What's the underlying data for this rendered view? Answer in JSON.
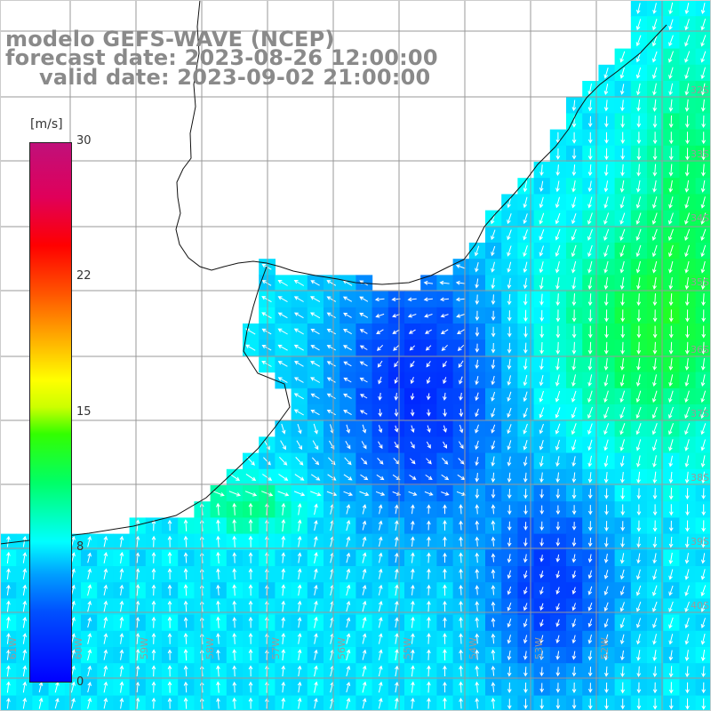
{
  "title": {
    "model": "modelo GEFS-WAVE (NCEP)",
    "forecast": "forecast date: 2023-08-26 12:00:00",
    "valid": "valid date: 2023-09-02 21:00:00"
  },
  "colorbar": {
    "units": "[m/s]",
    "ticks": [
      {
        "label": "30",
        "value": 30
      },
      {
        "label": "22",
        "value": 22
      },
      {
        "label": "15",
        "value": 15
      },
      {
        "label": "8",
        "value": 8
      },
      {
        "label": "0",
        "value": 0
      }
    ]
  },
  "axes": {
    "lat_labels": [
      "32S",
      "33S",
      "34S",
      "35S",
      "36S",
      "37S",
      "38S",
      "39S",
      "40S"
    ],
    "lon_labels": [
      "61W",
      "60W",
      "59W",
      "58W",
      "57W",
      "56W",
      "55W",
      "54W",
      "53W",
      "52W"
    ]
  },
  "colors": {
    "land": "#ffffff",
    "grid": "#999999",
    "coast": "#111111",
    "arrows": "#ffffff",
    "title": "#8a8a8a"
  }
}
